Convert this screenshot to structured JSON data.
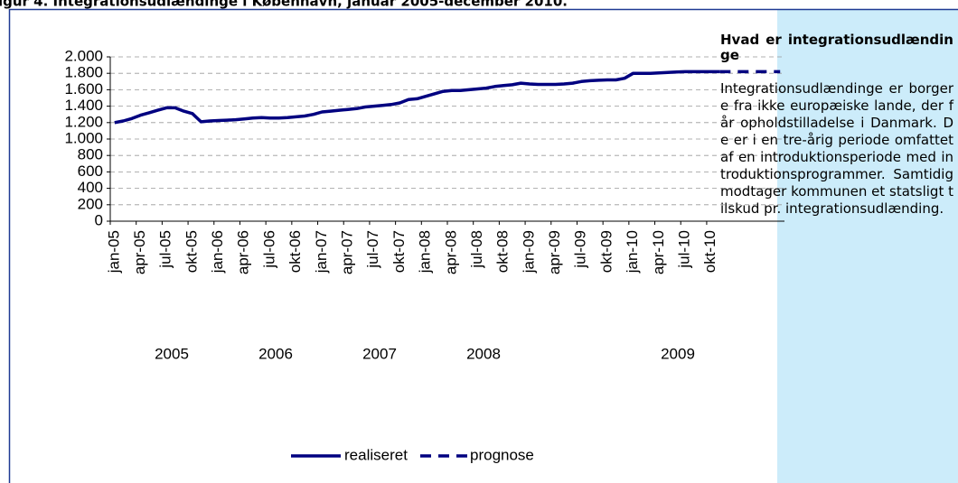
{
  "chart_data": {
    "type": "line",
    "title": "igur 4. Integrationsudlændinge i København, januar 2005-december 2010.",
    "categories": [
      "jan-05",
      null,
      null,
      "apr-05",
      null,
      null,
      "jul-05",
      null,
      null,
      "okt-05",
      null,
      null,
      "jan-06",
      null,
      null,
      "apr-06",
      null,
      null,
      "jul-06",
      null,
      null,
      "okt-06",
      null,
      null,
      "jan-07",
      null,
      null,
      "apr-07",
      null,
      null,
      "jul-07",
      null,
      null,
      "okt-07",
      null,
      null,
      "jan-08",
      null,
      null,
      "apr-08",
      null,
      null,
      "jul-08",
      null,
      null,
      "okt-08",
      null,
      null,
      "jan-09",
      null,
      null,
      "apr-09",
      null,
      null,
      "jul-09",
      null,
      null,
      "okt-09",
      null,
      null,
      "jan-10",
      null,
      null,
      "apr-10",
      null,
      null,
      "jul-10",
      null,
      null,
      "okt-10",
      null,
      null,
      null,
      null,
      null,
      null,
      null,
      null
    ],
    "year_labels": [
      "2005",
      "2006",
      "2007",
      "2008",
      "2009"
    ],
    "series": [
      {
        "name": "realiseret",
        "color": "#000080",
        "dashed": false,
        "values": [
          1200,
          1220,
          1250,
          1290,
          1320,
          1350,
          1380,
          1380,
          1340,
          1310,
          1210,
          1220,
          1225,
          1230,
          1235,
          1245,
          1255,
          1260,
          1255,
          1255,
          1260,
          1270,
          1280,
          1300,
          1330,
          1340,
          1350,
          1360,
          1370,
          1390,
          1400,
          1410,
          1420,
          1440,
          1480,
          1490,
          1520,
          1550,
          1580,
          1590,
          1590,
          1600,
          1610,
          1620,
          1640,
          1650,
          1660,
          1680,
          1670,
          1665,
          1665,
          1665,
          1670,
          1680,
          1700,
          1710,
          1715,
          1720,
          1720,
          1740,
          1800,
          1800,
          1800,
          1805,
          1810,
          1815,
          1820,
          1820,
          1820,
          1820,
          1820,
          null,
          null,
          null,
          null,
          null,
          null,
          null
        ]
      },
      {
        "name": "prognose",
        "color": "#000080",
        "dashed": true,
        "values": [
          null,
          null,
          null,
          null,
          null,
          null,
          null,
          null,
          null,
          null,
          null,
          null,
          null,
          null,
          null,
          null,
          null,
          null,
          null,
          null,
          null,
          null,
          null,
          null,
          null,
          null,
          null,
          null,
          null,
          null,
          null,
          null,
          null,
          null,
          null,
          null,
          null,
          null,
          null,
          null,
          null,
          null,
          null,
          null,
          null,
          null,
          null,
          null,
          null,
          null,
          null,
          null,
          null,
          null,
          null,
          null,
          null,
          null,
          null,
          null,
          null,
          null,
          null,
          null,
          null,
          null,
          null,
          null,
          null,
          null,
          1820,
          1820,
          1820,
          1820,
          1820,
          1820,
          1820,
          1820
        ]
      }
    ],
    "ylim": [
      0,
      2000
    ],
    "yticks": [
      0,
      200,
      400,
      600,
      800,
      {
        "value": 1000,
        "label": "1.000"
      },
      {
        "value": 1200,
        "label": "1.200"
      },
      {
        "value": 1400,
        "label": "1.400"
      },
      {
        "value": 1600,
        "label": "1.600"
      },
      {
        "value": 1800,
        "label": "1.800"
      },
      {
        "value": 2000,
        "label": "2.000"
      }
    ],
    "grid": true
  },
  "sidebar": {
    "heading": "Hvad er integrationsudlændinge",
    "body": "Integrationsudlændinge er borgere fra ikke europæiske lande, der får opholdstilladelse i Danmark. De er i en tre-årig periode omfattet af en introduktionsperiode med introduktionsprogrammer. Samtidig modtager kommunen et statsligt tilskud pr. integrationsudlænding."
  }
}
